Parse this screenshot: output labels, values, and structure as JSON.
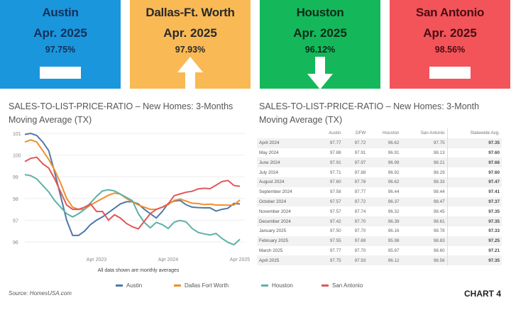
{
  "cards": [
    {
      "city": "Austin",
      "month": "Apr. 2025",
      "value": "97.75%",
      "trend": "flat",
      "bg": "#1a96dc",
      "fg": "#14305a"
    },
    {
      "city": "Dallas-Ft. Worth",
      "month": "Apr. 2025",
      "value": "97.93%",
      "trend": "up",
      "bg": "#f9b955",
      "fg": "#2a2a2a"
    },
    {
      "city": "Houston",
      "month": "Apr. 2025",
      "value": "96.12%",
      "trend": "down",
      "bg": "#14b85a",
      "fg": "#0f2a1a"
    },
    {
      "city": "San Antonio",
      "month": "Apr. 2025",
      "value": "98.56%",
      "trend": "flat",
      "bg": "#f2545a",
      "fg": "#4a0d12"
    }
  ],
  "left_title": "SALES-TO-LIST-PRICE-RATIO – New Homes: 3-Months Moving Average (TX)",
  "right_title": "SALES-TO-LIST-PRICE-RATIO – New Homes:  3-Month Moving Average (TX)",
  "chart_data": {
    "type": "line",
    "x_start": "Apr 2022",
    "x_end": "Apr 2025",
    "x_ticks": [
      "Apr 2023",
      "Apr 2024",
      "Apr 2025"
    ],
    "y_ticks": [
      96,
      97,
      98,
      99,
      100,
      101
    ],
    "ylim": [
      95.8,
      101.1
    ],
    "note": "All data shown are monthly averages",
    "grid": true,
    "legend": "bottom",
    "series": [
      {
        "name": "Austin",
        "color": "#4e79a7",
        "values": [
          100.95,
          101.0,
          100.9,
          100.6,
          100.2,
          99.2,
          98.1,
          97.0,
          96.3,
          96.3,
          96.5,
          96.8,
          97.0,
          97.15,
          97.35,
          97.55,
          97.75,
          97.85,
          97.85,
          97.75,
          97.5,
          97.3,
          97.1,
          97.4,
          97.77,
          97.88,
          97.91,
          97.71,
          97.6,
          97.58,
          97.57,
          97.57,
          97.42,
          97.5,
          97.55,
          97.77,
          97.75
        ]
      },
      {
        "name": "Dallas Fort Worth",
        "color": "#f28e2b",
        "values": [
          100.6,
          100.7,
          100.6,
          100.2,
          99.8,
          99.3,
          98.7,
          98.0,
          97.6,
          97.5,
          97.5,
          97.7,
          97.85,
          98.0,
          98.15,
          98.25,
          98.2,
          98.0,
          97.85,
          97.7,
          97.6,
          97.5,
          97.5,
          97.6,
          97.72,
          97.91,
          97.97,
          97.88,
          97.78,
          97.77,
          97.72,
          97.74,
          97.7,
          97.7,
          97.69,
          97.7,
          97.93
        ]
      },
      {
        "name": "Houston",
        "color": "#5fb0a8",
        "values": [
          99.1,
          99.05,
          98.9,
          98.6,
          98.3,
          97.9,
          97.6,
          97.3,
          97.15,
          97.3,
          97.5,
          97.8,
          98.1,
          98.35,
          98.4,
          98.35,
          98.2,
          98.05,
          97.9,
          97.3,
          96.9,
          96.65,
          96.9,
          96.8,
          96.62,
          96.91,
          96.99,
          96.92,
          96.62,
          96.44,
          96.37,
          96.32,
          96.39,
          96.16,
          95.98,
          95.87,
          96.12
        ]
      },
      {
        "name": "San Antonio",
        "color": "#e15759",
        "values": [
          99.7,
          99.85,
          99.9,
          99.6,
          99.4,
          98.9,
          98.3,
          97.7,
          97.5,
          97.5,
          97.6,
          97.75,
          97.4,
          97.4,
          97.0,
          97.25,
          97.1,
          96.85,
          96.7,
          96.6,
          96.95,
          97.3,
          97.5,
          97.6,
          97.75,
          98.13,
          98.21,
          98.29,
          98.33,
          98.44,
          98.47,
          98.45,
          98.61,
          98.78,
          98.83,
          98.6,
          98.56
        ]
      }
    ]
  },
  "table": {
    "headers": [
      "",
      "Austin",
      "DFW",
      "Houston",
      "San Antonio",
      "Statewide Avg."
    ],
    "rows": [
      [
        "April 2024",
        "97.77",
        "97.72",
        "96.62",
        "97.75",
        "97.35"
      ],
      [
        "May 2024",
        "97.88",
        "97.91",
        "96.91",
        "98.13",
        "97.60"
      ],
      [
        "June 2024",
        "97.91",
        "97.97",
        "96.99",
        "98.21",
        "97.66"
      ],
      [
        "July 2024",
        "97.71",
        "97.88",
        "96.92",
        "98.29",
        "97.60"
      ],
      [
        "August 2024",
        "97.60",
        "97.78",
        "96.62",
        "98.33",
        "97.47"
      ],
      [
        "September 2024",
        "97.58",
        "97.77",
        "96.44",
        "98.44",
        "97.41"
      ],
      [
        "October 2024",
        "97.57",
        "97.72",
        "96.37",
        "98.47",
        "97.37"
      ],
      [
        "November 2024",
        "97.57",
        "97.74",
        "96.32",
        "98.45",
        "97.35"
      ],
      [
        "December 2024",
        "97.42",
        "97.70",
        "96.39",
        "98.61",
        "97.35"
      ],
      [
        "January 2025",
        "97.50",
        "97.70",
        "96.16",
        "98.78",
        "97.33"
      ],
      [
        "February 2025",
        "97.55",
        "97.69",
        "95.98",
        "98.83",
        "97.25"
      ],
      [
        "March 2025",
        "97.77",
        "97.70",
        "95.87",
        "98.60",
        "97.21"
      ],
      [
        "April 2025",
        "97.75",
        "97.93",
        "96.12",
        "98.56",
        "97.35"
      ]
    ]
  },
  "source": "Source: HomesUSA.com",
  "chart_label": "CHART 4"
}
